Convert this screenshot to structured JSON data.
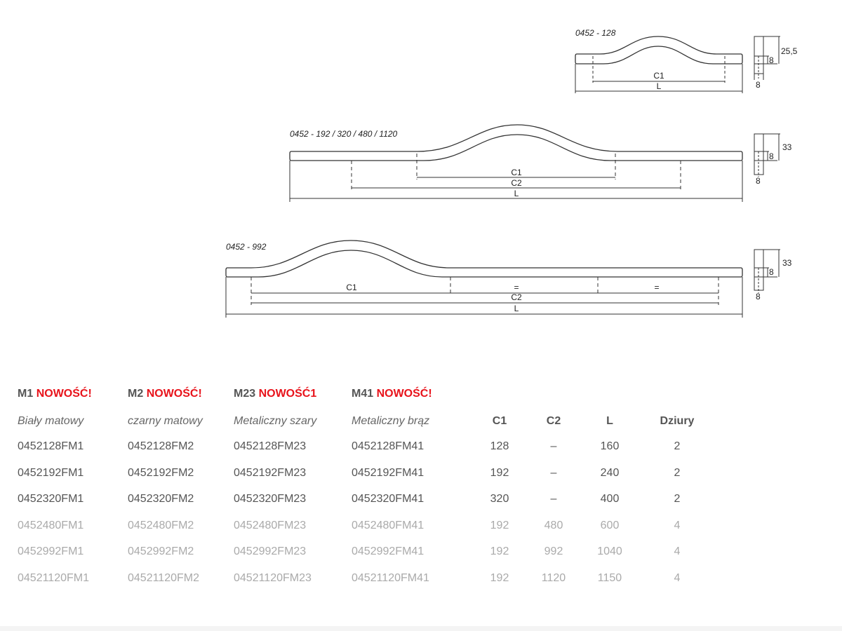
{
  "drawings": [
    {
      "title": "0452 - 128",
      "labels": {
        "c1": "C1",
        "l": "L"
      },
      "side": {
        "height": "25,5",
        "hole": "8",
        "width": "8"
      }
    },
    {
      "title": "0452 - 192 / 320 / 480 / 1120",
      "labels": {
        "c1": "C1",
        "c2": "C2",
        "l": "L"
      },
      "side": {
        "height": "33",
        "hole": "8",
        "width": "8"
      }
    },
    {
      "title": "0452 - 992",
      "labels": {
        "c1": "C1",
        "eq1": "=",
        "eq2": "=",
        "c2": "C2",
        "l": "L"
      },
      "side": {
        "height": "33",
        "hole": "8",
        "width": "8"
      }
    }
  ],
  "table": {
    "finishes": [
      {
        "code": "M1",
        "badge": "NOWOŚĆ!",
        "name": "Biały matowy"
      },
      {
        "code": "M2",
        "badge": "NOWOŚĆ!",
        "name": "czarny matowy"
      },
      {
        "code": "M23",
        "badge": "NOWOŚĆ1",
        "name": "Metaliczny szary"
      },
      {
        "code": "M41",
        "badge": "NOWOŚĆ!",
        "name": "Metaliczny brąz"
      }
    ],
    "headers": {
      "c1": "C1",
      "c2": "C2",
      "l": "L",
      "holes": "Dziury"
    },
    "rows": [
      {
        "m1": "0452128FM1",
        "m2": "0452128FM2",
        "m23": "0452128FM23",
        "m41": "0452128FM41",
        "c1": "128",
        "c2": "–",
        "l": "160",
        "holes": "2"
      },
      {
        "m1": "0452192FM1",
        "m2": "0452192FM2",
        "m23": "0452192FM23",
        "m41": "0452192FM41",
        "c1": "192",
        "c2": "–",
        "l": "240",
        "holes": "2"
      },
      {
        "m1": "0452320FM1",
        "m2": "0452320FM2",
        "m23": "0452320FM23",
        "m41": "0452320FM41",
        "c1": "320",
        "c2": "–",
        "l": "400",
        "holes": "2"
      },
      {
        "m1": "0452480FM1",
        "m2": "0452480FM2",
        "m23": "0452480FM23",
        "m41": "0452480FM41",
        "c1": "192",
        "c2": "480",
        "l": "600",
        "holes": "4"
      },
      {
        "m1": "0452992FM1",
        "m2": "0452992FM2",
        "m23": "0452992FM23",
        "m41": "0452992FM41",
        "c1": "192",
        "c2": "992",
        "l": "1040",
        "holes": "4"
      },
      {
        "m1": "04521120FM1",
        "m2": "04521120FM2",
        "m23": "04521120FM23",
        "m41": "04521120FM41",
        "c1": "192",
        "c2": "1120",
        "l": "1150",
        "holes": "4"
      }
    ]
  },
  "colors": {
    "accent": "#e8131b",
    "text": "#555555",
    "muted": "#aaaaaa"
  }
}
